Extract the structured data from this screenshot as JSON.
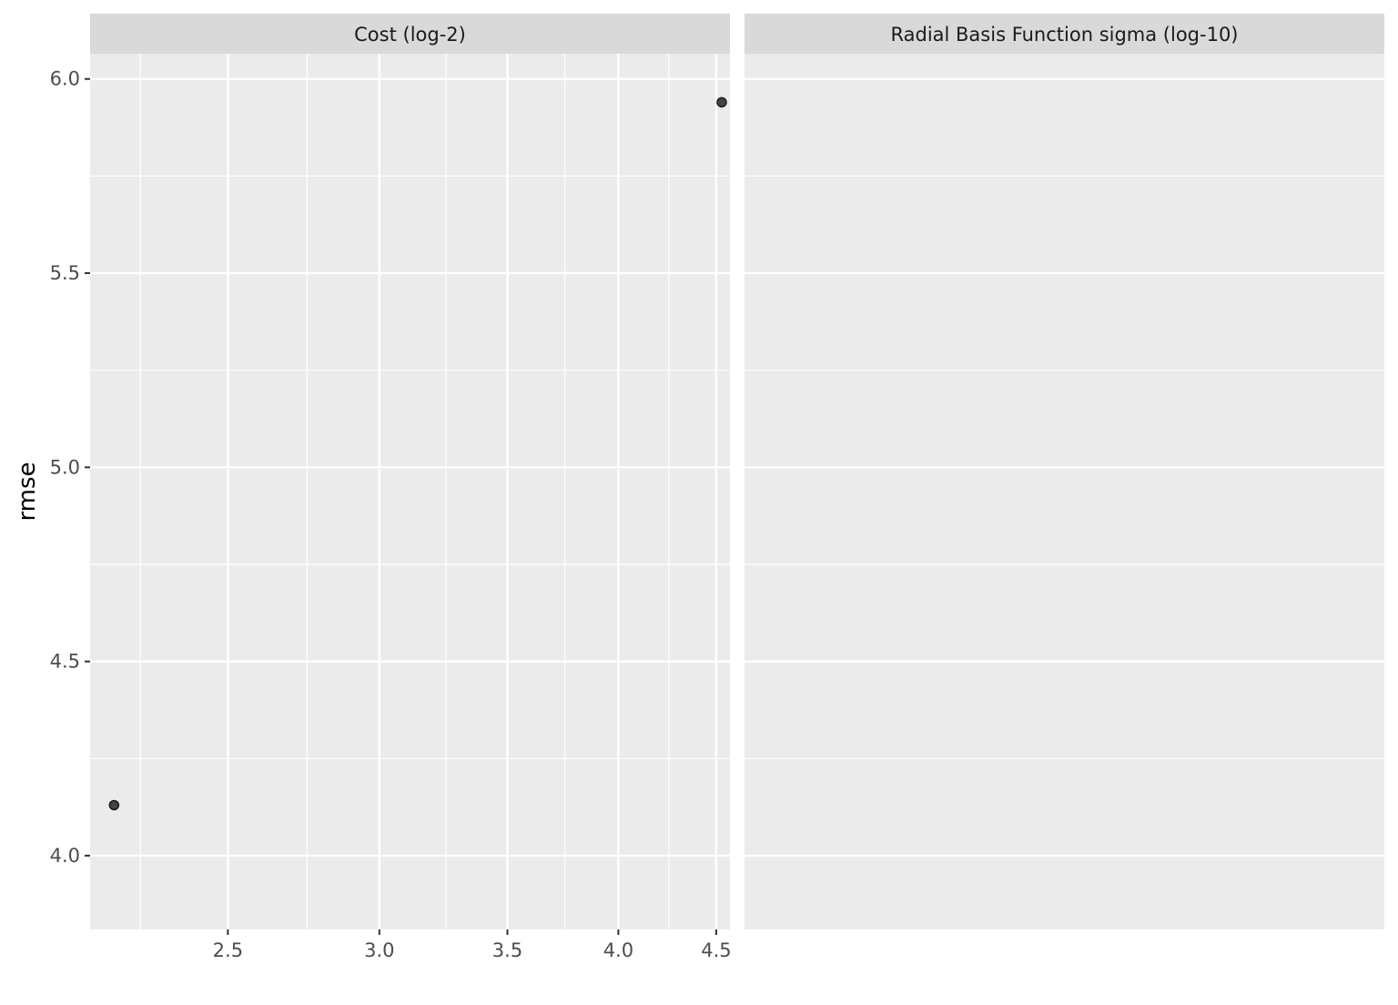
{
  "chart_data": {
    "type": "scatter",
    "ylabel": "rmse",
    "xlabel": "",
    "ylim": [
      3.81,
      6.065
    ],
    "y_ticks": [
      4.0,
      4.5,
      5.0,
      5.5,
      6.0
    ],
    "y_tick_labels": [
      "4.0",
      "4.5",
      "5.0",
      "5.5",
      "6.0"
    ],
    "grid": true,
    "point_color": "#333333",
    "panel_background": "#ebebeb",
    "strip_background": "#d9d9d9",
    "facets": [
      {
        "strip_label": "Cost (log-2)",
        "x_scale": "log2",
        "xlim": [
          2.118,
          4.575
        ],
        "x_major_ticks": [
          2.5,
          3.0,
          3.5,
          4.0,
          4.5
        ],
        "x_tick_labels": [
          "2.5",
          "3.0",
          "3.5",
          "4.0",
          "4.5"
        ],
        "x_minor_ticks": [
          2.25,
          2.75,
          3.25,
          3.75,
          4.25
        ],
        "points": [
          {
            "x": 2.18,
            "y": 4.13
          },
          {
            "x": 4.53,
            "y": 5.94
          }
        ]
      },
      {
        "strip_label": "Radial Basis Function sigma (log-10)",
        "x_scale": "log10",
        "x_tick_labels": [],
        "points": []
      }
    ]
  }
}
